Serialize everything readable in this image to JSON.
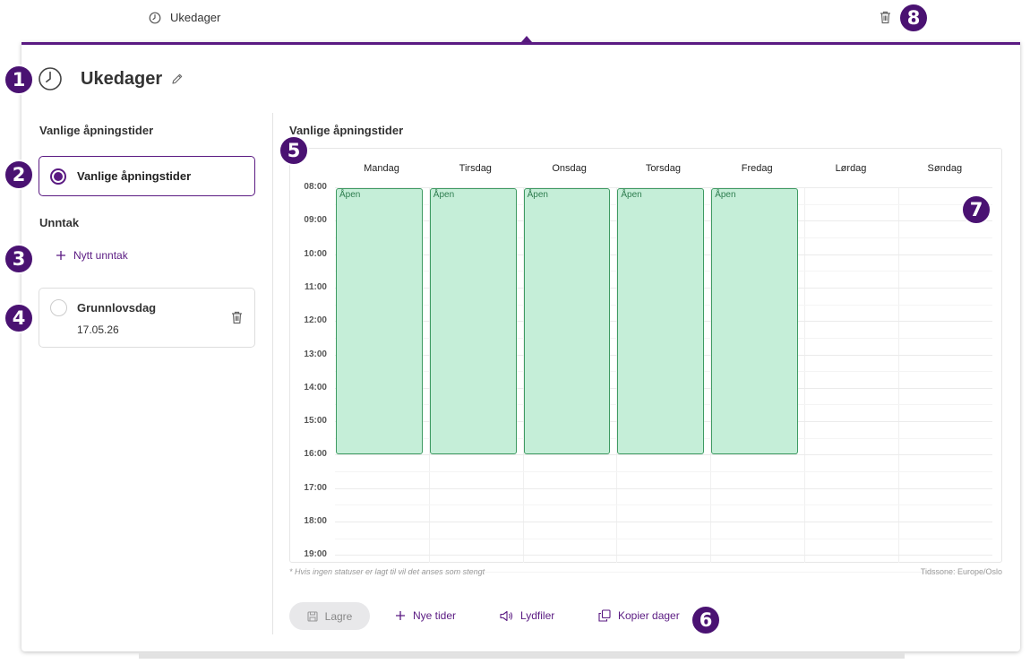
{
  "topbar": {
    "tab_label": "Ukedager",
    "tab_icon": "clock-icon",
    "delete_icon": "trash-icon"
  },
  "header": {
    "title": "Ukedager",
    "icon": "clock-icon",
    "edit_icon": "pencil-icon"
  },
  "sidebar": {
    "regular_heading": "Vanlige åpningstider",
    "regular_option": {
      "label": "Vanlige åpningstider",
      "selected": true
    },
    "exceptions_heading": "Unntak",
    "add_exception_label": "Nytt unntak",
    "exceptions": [
      {
        "name": "Grunnlovsdag",
        "date": "17.05.26",
        "selected": false
      }
    ]
  },
  "calendar": {
    "title": "Vanlige åpningstider",
    "days": [
      "Mandag",
      "Tirsdag",
      "Onsdag",
      "Torsdag",
      "Fredag",
      "Lørdag",
      "Søndag"
    ],
    "hours": [
      "08:00",
      "09:00",
      "10:00",
      "11:00",
      "12:00",
      "13:00",
      "14:00",
      "15:00",
      "16:00",
      "17:00",
      "18:00",
      "19:00"
    ],
    "blocks": [
      {
        "day": 0,
        "start": "08:00",
        "end": "16:00",
        "label": "Åpen"
      },
      {
        "day": 1,
        "start": "08:00",
        "end": "16:00",
        "label": "Åpen"
      },
      {
        "day": 2,
        "start": "08:00",
        "end": "16:00",
        "label": "Åpen"
      },
      {
        "day": 3,
        "start": "08:00",
        "end": "16:00",
        "label": "Åpen"
      },
      {
        "day": 4,
        "start": "08:00",
        "end": "16:00",
        "label": "Åpen"
      }
    ],
    "colors": {
      "block_fill": "#c5eed8",
      "block_border": "#3e9a62",
      "accent": "#5a1a82"
    },
    "footnote": "* Hvis ingen statuser er lagt til vil det anses som stengt",
    "timezone": "Tidssone: Europe/Oslo"
  },
  "actions": {
    "save_label": "Lagre",
    "new_times_label": "Nye tider",
    "audio_label": "Lydfiler",
    "copy_days_label": "Kopier dager"
  },
  "badges": [
    "1",
    "2",
    "3",
    "4",
    "5",
    "6",
    "7",
    "8"
  ]
}
